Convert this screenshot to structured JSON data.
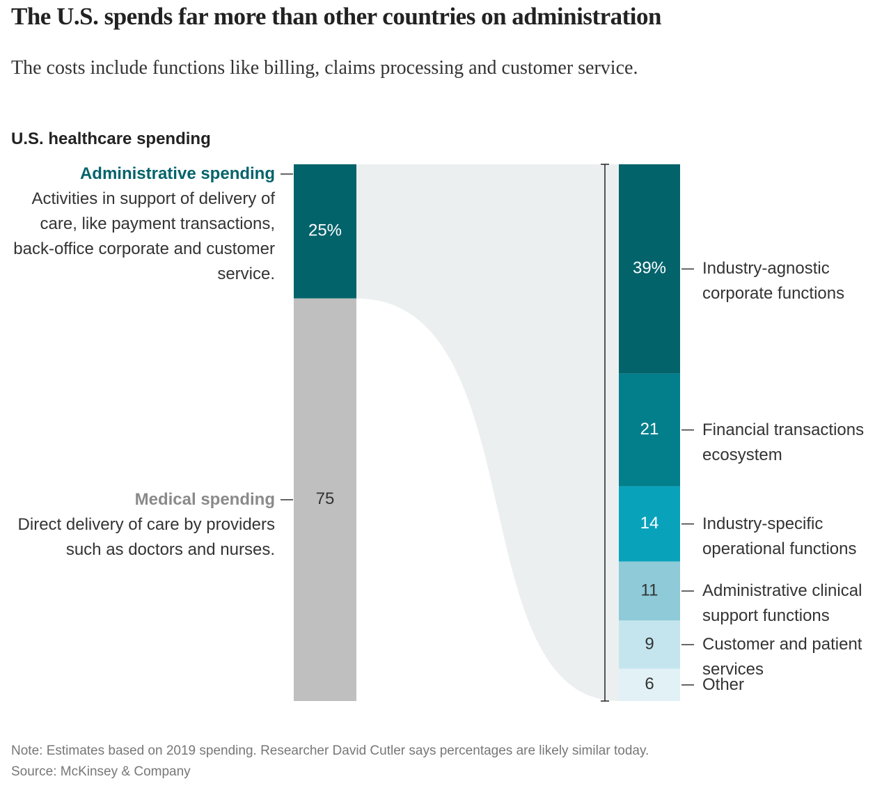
{
  "chart_data": {
    "type": "stacked",
    "title": "The U.S. spends far more than other countries on administration",
    "subtitle": "The costs include functions like billing, claims processing and customer service.",
    "bar_title": "U.S. healthcare spending",
    "left": {
      "categories": [
        "Administrative spending",
        "Medical spending"
      ],
      "descriptions": [
        "Activities in support of delivery of care, like payment transactions, back-office corporate and customer service.",
        "Direct delivery of care by providers such as doctors and nurses."
      ],
      "values": [
        25,
        75
      ],
      "value_labels": [
        "25%",
        "75"
      ],
      "colors": [
        "#03636b",
        "#bfbfbf"
      ],
      "name_colors": [
        "#03636b",
        "#8a8a8a"
      ]
    },
    "right": {
      "categories": [
        "Industry-agnostic corporate functions",
        "Financial transactions ecosystem",
        "Industry-specific operational functions",
        "Administrative clinical support functions",
        "Customer and patient services",
        "Other"
      ],
      "values": [
        39,
        21,
        14,
        11,
        9,
        6
      ],
      "value_labels": [
        "39%",
        "21",
        "14",
        "11",
        "9",
        "6"
      ],
      "colors": [
        "#03636b",
        "#037f8c",
        "#09a2bb",
        "#8ecad8",
        "#c4e5ed",
        "#e2f1f6"
      ]
    },
    "note": "Note: Estimates based on 2019 spending. Researcher David Cutler says percentages are likely similar today.",
    "source": "Source: McKinsey & Company"
  }
}
